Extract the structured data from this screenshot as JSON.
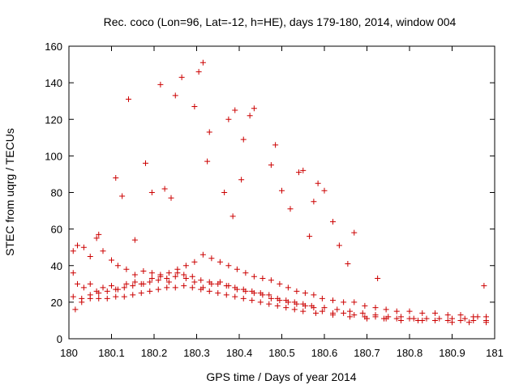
{
  "chart_data": {
    "type": "scatter",
    "title": "Rec. coco (Lon=96, Lat=-12, h=HE), days 179-180, 2014, window 004",
    "xlabel": "GPS time / Days of year 2014",
    "ylabel": "STEC from uqrg / TECUs",
    "xlim": [
      180,
      181
    ],
    "ylim": [
      0,
      160
    ],
    "x_ticks": [
      "180",
      "180.1",
      "180.2",
      "180.3",
      "180.4",
      "180.5",
      "180.6",
      "180.7",
      "180.8",
      "180.9",
      "181"
    ],
    "y_ticks": [
      "0",
      "20",
      "40",
      "60",
      "80",
      "100",
      "120",
      "140",
      "160"
    ],
    "grid": false,
    "legend": "none",
    "marker": "plus",
    "color": "#cc0000",
    "series": [
      {
        "x": [
          180.01,
          180.02,
          180.035,
          180.05,
          180.065,
          180.08,
          180.1,
          180.115,
          180.135,
          180.155,
          180.175,
          180.195,
          180.215,
          180.235,
          180.255,
          180.275,
          180.295,
          180.315,
          180.335,
          180.355,
          180.375,
          180.395,
          180.415,
          180.435,
          180.455,
          180.475,
          180.495,
          180.515,
          180.535,
          180.555,
          180.575,
          180.595,
          180.62,
          180.645,
          180.67,
          180.695,
          180.72,
          180.745,
          180.77,
          180.8,
          180.83,
          180.86,
          180.89,
          180.92,
          180.95,
          180.98,
          180.01,
          180.02,
          180.035,
          180.05,
          180.065,
          180.08,
          180.1,
          180.115,
          180.135,
          180.155,
          180.175,
          180.195,
          180.215,
          180.235,
          180.255,
          180.275,
          180.295,
          180.315,
          180.335,
          180.355,
          180.375,
          180.395,
          180.415,
          180.435,
          180.455,
          180.475,
          180.495,
          180.515,
          180.535,
          180.555,
          180.575,
          180.595,
          180.62,
          180.645,
          180.67,
          180.695,
          180.72,
          180.745,
          180.77,
          180.8,
          180.83,
          180.86,
          180.89,
          180.92,
          180.95,
          180.98,
          180.01,
          180.03,
          180.05,
          180.07,
          180.09,
          180.11,
          180.13,
          180.15,
          180.17,
          180.19,
          180.21,
          180.23,
          180.25,
          180.27,
          180.29,
          180.31,
          180.33,
          180.35,
          180.37,
          180.39,
          180.41,
          180.43,
          180.45,
          180.47,
          180.49,
          180.51,
          180.53,
          180.55,
          180.57,
          180.6,
          180.63,
          180.66,
          180.69,
          180.72,
          180.75,
          180.78,
          180.81,
          180.84,
          180.87,
          180.9,
          180.93,
          180.96,
          180.015,
          180.03,
          180.05,
          180.07,
          180.09,
          180.11,
          180.13,
          180.15,
          180.17,
          180.19,
          180.21,
          180.23,
          180.25,
          180.27,
          180.29,
          180.31,
          180.33,
          180.35,
          180.37,
          180.39,
          180.41,
          180.43,
          180.45,
          180.47,
          180.49,
          180.51,
          180.53,
          180.55,
          180.58,
          180.62,
          180.66,
          180.7,
          180.74,
          180.78,
          180.82,
          180.86,
          180.9,
          180.94,
          180.98,
          180.07,
          180.11,
          180.125,
          180.14,
          180.155,
          180.18,
          180.195,
          180.215,
          180.225,
          180.24,
          180.25,
          180.265,
          180.295,
          180.305,
          180.315,
          180.325,
          180.33,
          180.365,
          180.375,
          180.385,
          180.39,
          180.405,
          180.41,
          180.425,
          180.435,
          180.475,
          180.485,
          180.5,
          180.52,
          180.54,
          180.55,
          180.565,
          180.575,
          180.585,
          180.6,
          180.62,
          180.635,
          180.655,
          180.67,
          180.725,
          180.975
        ],
        "y": [
          48,
          51,
          50,
          45,
          55,
          48,
          43,
          40,
          38,
          35,
          37,
          36,
          34,
          36,
          38,
          40,
          42,
          46,
          44,
          42,
          40,
          38,
          36,
          34,
          33,
          32,
          30,
          28,
          26,
          25,
          24,
          22,
          21,
          20,
          20,
          18,
          17,
          16,
          15,
          15,
          14,
          14,
          13,
          13,
          12,
          12,
          36,
          30,
          28,
          30,
          26,
          28,
          29,
          27,
          30,
          31,
          30,
          33,
          35,
          31,
          36,
          33,
          31,
          28,
          30,
          31,
          29,
          27,
          26,
          25,
          24,
          22,
          21,
          20,
          19,
          18,
          17,
          15,
          14,
          14,
          13,
          12,
          12,
          11,
          11,
          11,
          10,
          10,
          10,
          10,
          10,
          10,
          23,
          22,
          24,
          25,
          26,
          27,
          28,
          29,
          30,
          31,
          32,
          33,
          34,
          35,
          34,
          32,
          31,
          30,
          29,
          28,
          27,
          26,
          25,
          24,
          22,
          21,
          20,
          19,
          18,
          17,
          16,
          15,
          14,
          13,
          12,
          12,
          11,
          11,
          11,
          11,
          11,
          12,
          16,
          20,
          22,
          22,
          22,
          23,
          23,
          24,
          25,
          26,
          27,
          28,
          28,
          29,
          28,
          27,
          26,
          25,
          24,
          23,
          22,
          21,
          20,
          19,
          18,
          17,
          16,
          15,
          14,
          13,
          12,
          11,
          11,
          10,
          10,
          10,
          9,
          9,
          9,
          57,
          88,
          78,
          131,
          54,
          96,
          80,
          139,
          82,
          77,
          133,
          143,
          127,
          146,
          151,
          97,
          113,
          80,
          120,
          67,
          125,
          87,
          109,
          122,
          126,
          95,
          106,
          81,
          71,
          91,
          92,
          56,
          75,
          85,
          81,
          64,
          51,
          41,
          58,
          33,
          29
        ]
      }
    ]
  }
}
